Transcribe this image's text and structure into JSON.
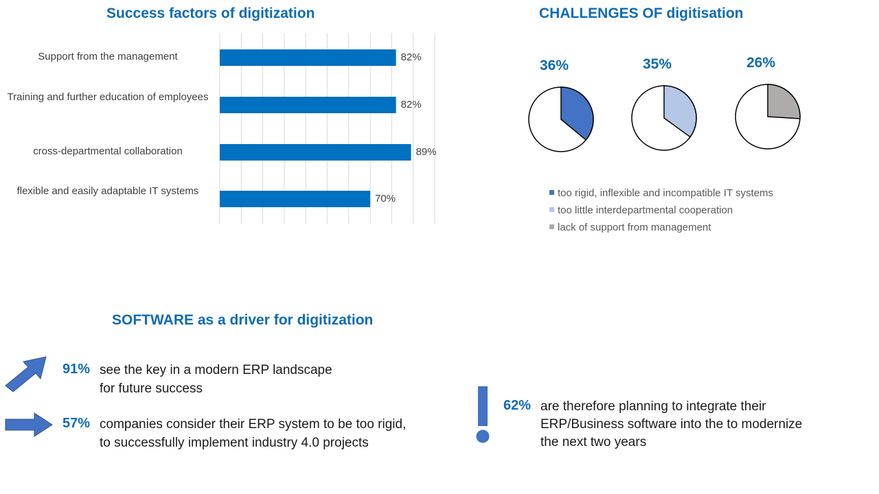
{
  "headings": {
    "success": "Success factors of digitization",
    "challenges": "CHALLENGES OF digitisation",
    "software": "SOFTWARE as a driver for digitization"
  },
  "chart_data": [
    {
      "type": "bar",
      "orientation": "horizontal",
      "title": "Success factors of digitization",
      "categories": [
        "Support from the management",
        "Training and further education of employees",
        "cross-departmental collaboration",
        "flexible and easily adaptable IT systems"
      ],
      "values": [
        82,
        82,
        89,
        70
      ],
      "value_labels": [
        "82%",
        "82%",
        "89%",
        "70%"
      ],
      "xlim": [
        0,
        100
      ],
      "grid": true,
      "color": "#0070C0"
    },
    {
      "type": "pie",
      "title": "CHALLENGES OF digitisation",
      "series": [
        {
          "name": "too rigid, inflexible and incompatible IT systems",
          "value": 36,
          "label": "36%",
          "color": "#4472C4"
        },
        {
          "name": "too little interdepartmental cooperation",
          "value": 35,
          "label": "35%",
          "color": "#B4C7E7"
        },
        {
          "name": "lack of support from management",
          "value": 26,
          "label": "26%",
          "color": "#AFABAB"
        }
      ],
      "legend_placement": "bottom"
    }
  ],
  "stats": [
    {
      "pct": "91%",
      "lines": [
        "see the key in a modern ERP landscape",
        "for future success"
      ],
      "icon": "diagonal-arrow-icon"
    },
    {
      "pct": "57%",
      "lines": [
        "companies consider their ERP system to be too rigid,",
        "to successfully implement  industry 4.0 projects"
      ],
      "icon": "right-arrow-icon"
    },
    {
      "pct": "62%",
      "lines": [
        "are therefore planning to integrate their",
        "ERP/Business software into the to modernize",
        "the next two years"
      ],
      "icon": "exclamation-icon"
    }
  ],
  "colors": {
    "accent": "#0E6BB5",
    "bar": "#0070C0",
    "icon": "#4472C4"
  }
}
